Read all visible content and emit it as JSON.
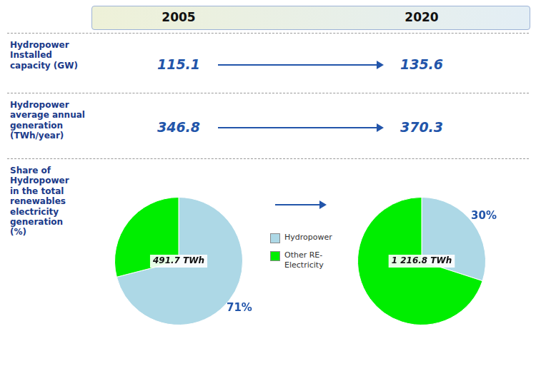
{
  "chart_data": [
    {
      "type": "table",
      "categories": [
        "Hydropower\nInstalled\ncapacity (GW)",
        "Hydropower\naverage annual\ngeneration\n(TWh/year)",
        "Share of\nHydropower\nin the total\nrenewables\nelectricity\ngeneration\n(%)"
      ],
      "series": [
        {
          "name": "2005",
          "values": [
            115.1,
            346.8,
            null
          ]
        },
        {
          "name": "2020",
          "values": [
            135.6,
            370.3,
            null
          ]
        }
      ]
    },
    {
      "type": "pie",
      "categories": [
        "Hydropower",
        "Other RE-\nElectricity"
      ],
      "values": [
        71,
        29
      ],
      "colors": [
        "#add8e6",
        "#00ee00"
      ],
      "annotations": [
        "491.7 TWh"
      ],
      "data_labels": true,
      "value_labels": [
        "71%",
        null
      ],
      "legend": "right"
    },
    {
      "type": "pie",
      "categories": [
        "Hydropower",
        "Other RE-\nElectricity"
      ],
      "values": [
        30,
        70
      ],
      "colors": [
        "#add8e6",
        "#00ee00"
      ],
      "annotations": [
        "1 216.8 TWh"
      ],
      "data_labels": true,
      "value_labels": [
        "30%",
        null
      ]
    }
  ]
}
